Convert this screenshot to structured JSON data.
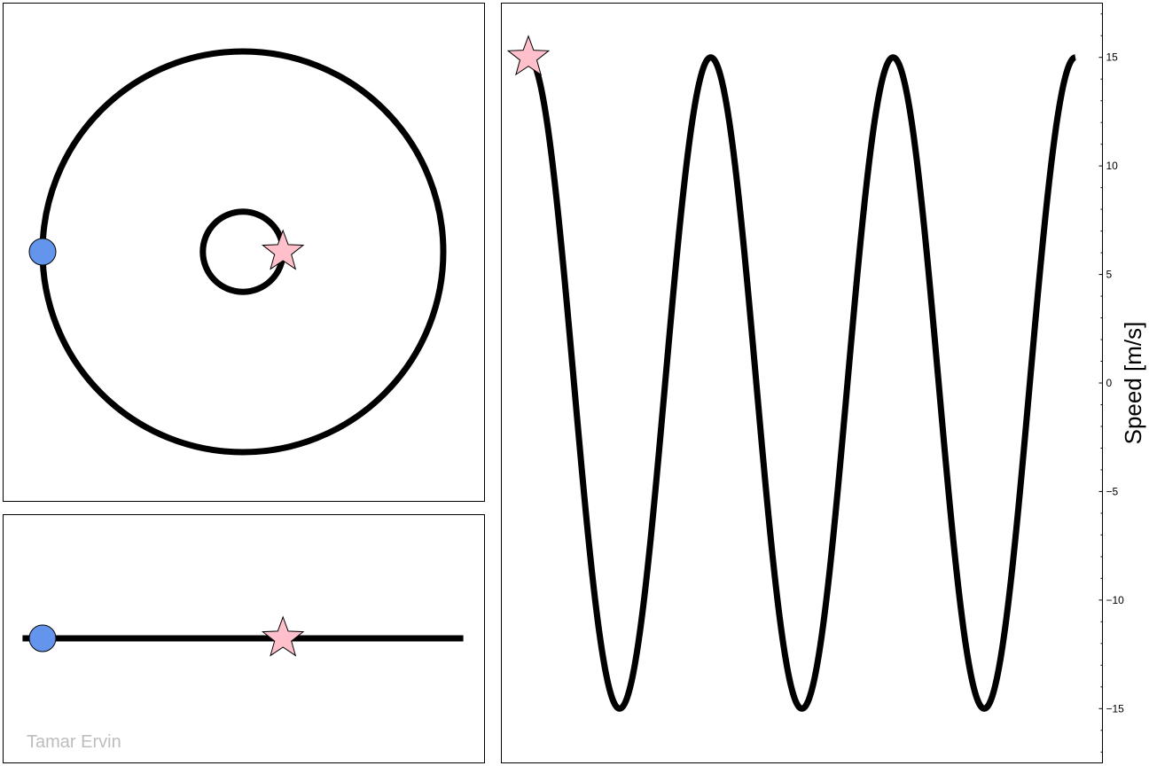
{
  "watermark": "Tamar Ervin",
  "colors": {
    "line": "#000000",
    "circle_marker": "#6495ed",
    "star_marker": "#ffc0cb",
    "watermark": "#bdbdbd"
  },
  "chart_data": [
    {
      "type": "line",
      "panel": "top-left",
      "description_note": "",
      "series": [
        {
          "shape": "circle",
          "center": [
            0,
            0
          ],
          "radius": 1.0
        },
        {
          "shape": "circle",
          "center": [
            0,
            0
          ],
          "radius": 0.2
        }
      ],
      "markers": [
        {
          "symbol": "circle",
          "x": -1.0,
          "y": 0.0
        },
        {
          "symbol": "star",
          "x": 0.2,
          "y": 0.0
        }
      ],
      "grid": false,
      "axes_visible": false
    },
    {
      "type": "line",
      "panel": "bottom-left",
      "series": [
        {
          "x": [
            -1.1,
            1.1
          ],
          "y": [
            0,
            0
          ]
        }
      ],
      "markers": [
        {
          "symbol": "circle",
          "x": -1.0,
          "y": 0.0
        },
        {
          "symbol": "star",
          "x": 0.2,
          "y": 0.0
        }
      ],
      "grid": false,
      "axes_visible": false
    },
    {
      "type": "line",
      "panel": "right",
      "ylabel": "Speed [m/s]",
      "xlabel": "",
      "ylim": [
        -17.5,
        17.5
      ],
      "yticks": [
        15,
        10,
        5,
        0,
        -5,
        -10,
        -15
      ],
      "ytick_labels": [
        "15",
        "10",
        "5",
        "0",
        "−5",
        "−10",
        "−15"
      ],
      "y_axis_side": "right",
      "series": [
        {
          "function": "15*cos(2*pi*t)",
          "t_range": [
            0,
            3
          ]
        }
      ],
      "markers": [
        {
          "symbol": "star",
          "t": 0,
          "y": 15
        }
      ],
      "grid": false
    }
  ]
}
